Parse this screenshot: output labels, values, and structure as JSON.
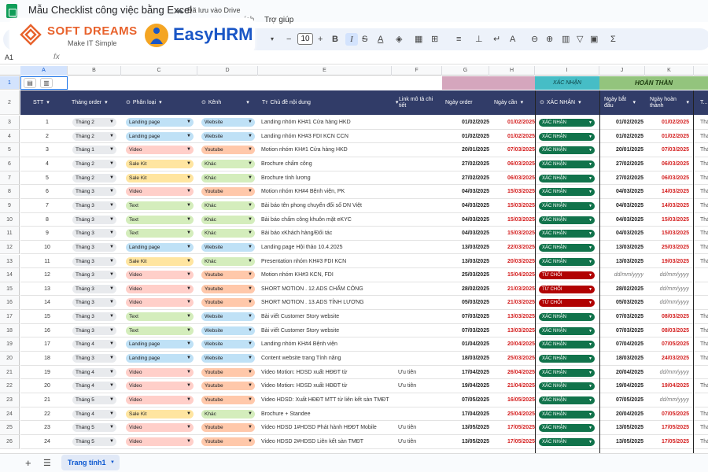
{
  "window": {
    "doc_title": "Mẫu Checklist công việc bằng Excel",
    "save_status": "Đã lưu vào Drive",
    "menus": [
      "ích",
      "Trợ giúp"
    ]
  },
  "logos": {
    "softdreams_name": "SOFT DREAMS",
    "softdreams_tagline": "Make IT Simple",
    "easyhrm_name": "EasyHRM"
  },
  "toolbar": {
    "font_size": "10",
    "icons": [
      "minus-icon",
      "font-size",
      "plus-icon",
      "bold-icon",
      "italic-icon",
      "strikethrough-icon",
      "text-color-icon",
      "fill-color-icon",
      "borders-icon",
      "merge-icon",
      "align-icon",
      "valign-icon",
      "wrap-icon",
      "rotate-icon",
      "link-icon",
      "comment-icon",
      "chart-icon",
      "filter-icon",
      "table-view-icon",
      "functions-icon"
    ]
  },
  "formula_bar": {
    "cell_ref": "A1",
    "fx": "fx"
  },
  "columns": [
    "A",
    "B",
    "C",
    "D",
    "E",
    "F",
    "G",
    "H",
    "I",
    "J",
    "K"
  ],
  "row1": {
    "teal_label": "XÁC NHẬN",
    "green_label": "HOÀN THÀN"
  },
  "headers": {
    "stt": "STT",
    "thang_order": "Tháng order",
    "phan_loai": "Phân loại",
    "kenh": "Kênh",
    "chu_de": "Chủ đề nội dung",
    "link": "Link mô tả chi tiết",
    "ngay_order": "Ngày order",
    "ngay_can": "Ngày cần",
    "xac_nhan": "XÁC NHẬN",
    "ngay_bat_dau": "Ngày bắt đầu",
    "ngay_hoan_thanh": "Ngày hoàn thành",
    "extra": "T..."
  },
  "colors": {
    "header_bg": "#313c68",
    "chip_landing": "#bfe1f6",
    "chip_video": "#ffcfc9",
    "chip_salekit": "#ffe5a0",
    "chip_text": "#d4edbc",
    "chip_website": "#bfe1f6",
    "chip_youtube": "#ffc8aa",
    "chip_khac": "#d4edbc",
    "status_confirm": "#11734b",
    "status_reject": "#b10202"
  },
  "rows": [
    {
      "row": "3",
      "stt": "1",
      "thang": "Tháng 2",
      "loai": "Landing page",
      "kenh": "Website",
      "chu_de": "Landing nhóm KH#1 Cửa hàng HKD",
      "link": "",
      "order": "01/02/2025",
      "can": "01/02/2025",
      "status": "XÁC NHẬN",
      "bat_dau": "01/02/2025",
      "hoan_thanh": "01/02/2025",
      "extra": "Thá"
    },
    {
      "row": "4",
      "stt": "2",
      "thang": "Tháng 2",
      "loai": "Landing page",
      "kenh": "Website",
      "chu_de": "Landing nhóm KH#3 FDI KCN CCN",
      "link": "",
      "order": "01/02/2025",
      "can": "01/02/2025",
      "status": "XÁC NHẬN",
      "bat_dau": "01/02/2025",
      "hoan_thanh": "01/02/2025",
      "extra": "Thá"
    },
    {
      "row": "5",
      "stt": "3",
      "thang": "Tháng 1",
      "loai": "Video",
      "kenh": "Youtube",
      "chu_de": "Motion nhóm KH#1 Cửa hàng HKD",
      "link": "",
      "order": "20/01/2025",
      "can": "07/03/2025",
      "status": "XÁC NHẬN",
      "bat_dau": "20/01/2025",
      "hoan_thanh": "07/03/2025",
      "extra": "Thá"
    },
    {
      "row": "6",
      "stt": "4",
      "thang": "Tháng 2",
      "loai": "Sale Kit",
      "kenh": "Khác",
      "chu_de": "Brochure  chấm công",
      "link": "",
      "order": "27/02/2025",
      "can": "06/03/2025",
      "status": "XÁC NHẬN",
      "bat_dau": "27/02/2025",
      "hoan_thanh": "06/03/2025",
      "extra": "Thá"
    },
    {
      "row": "7",
      "stt": "5",
      "thang": "Tháng 2",
      "loai": "Sale Kit",
      "kenh": "Khác",
      "chu_de": "Brochure  tính lương",
      "link": "",
      "order": "27/02/2025",
      "can": "06/03/2025",
      "status": "XÁC NHẬN",
      "bat_dau": "27/02/2025",
      "hoan_thanh": "06/03/2025",
      "extra": "Thá"
    },
    {
      "row": "8",
      "stt": "6",
      "thang": "Tháng 3",
      "loai": "Video",
      "kenh": "Youtube",
      "chu_de": "Motion nhóm KH#4 Bệnh viện, PK",
      "link": "",
      "order": "04/03/2025",
      "can": "15/03/2025",
      "status": "XÁC NHẬN",
      "bat_dau": "04/03/2025",
      "hoan_thanh": "14/03/2025",
      "extra": "Thá"
    },
    {
      "row": "9",
      "stt": "7",
      "thang": "Tháng 3",
      "loai": "Text",
      "kenh": "Khác",
      "chu_de": "Bài báo  tên phong chuyển đổi số DN Việt",
      "link": "",
      "order": "04/03/2025",
      "can": "15/03/2025",
      "status": "XÁC NHẬN",
      "bat_dau": "04/03/2025",
      "hoan_thanh": "14/03/2025",
      "extra": "Thá"
    },
    {
      "row": "10",
      "stt": "8",
      "thang": "Tháng 3",
      "loai": "Text",
      "kenh": "Khác",
      "chu_de": "Bài báo  chấm công khuôn mặt eKYC",
      "link": "",
      "order": "04/03/2025",
      "can": "15/03/2025",
      "status": "XÁC NHẬN",
      "bat_dau": "04/03/2025",
      "hoan_thanh": "15/03/2025",
      "extra": "Thá"
    },
    {
      "row": "11",
      "stt": "9",
      "thang": "Tháng 3",
      "loai": "Text",
      "kenh": "Khác",
      "chu_de": "Bài báo  xKhách hàng/Đối tác",
      "link": "",
      "order": "04/03/2025",
      "can": "15/03/2025",
      "status": "XÁC NHẬN",
      "bat_dau": "04/03/2025",
      "hoan_thanh": "15/03/2025",
      "extra": "Thá"
    },
    {
      "row": "12",
      "stt": "10",
      "thang": "Tháng 3",
      "loai": "Landing page",
      "kenh": "Website",
      "chu_de": "Landing page Hội thảo 10.4.2025",
      "link": "",
      "order": "13/03/2025",
      "can": "22/03/2025",
      "status": "XÁC NHẬN",
      "bat_dau": "13/03/2025",
      "hoan_thanh": "25/03/2025",
      "extra": "Thá"
    },
    {
      "row": "13",
      "stt": "11",
      "thang": "Tháng 3",
      "loai": "Sale Kit",
      "kenh": "Khác",
      "chu_de": " Presentation nhóm KH#3 FDI KCN",
      "link": "",
      "order": "13/03/2025",
      "can": "20/03/2025",
      "status": "XÁC NHẬN",
      "bat_dau": "13/03/2025",
      "hoan_thanh": "19/03/2025",
      "extra": "Thá"
    },
    {
      "row": "14",
      "stt": "12",
      "thang": "Tháng 3",
      "loai": "Video",
      "kenh": "Youtube",
      "chu_de": "Motion nhóm KH#3 KCN, FDI",
      "link": "",
      "order": "25/03/2025",
      "can": "15/04/2025",
      "status": "TỪ CHỐI",
      "bat_dau": "dd/mm/yyyy",
      "hoan_thanh": "dd/mm/yyyy",
      "extra": ""
    },
    {
      "row": "15",
      "stt": "13",
      "thang": "Tháng 3",
      "loai": "Video",
      "kenh": "Youtube",
      "chu_de": "SHORT MOTION . 12.ADS CHẤM CÔNG",
      "link": "",
      "order": "28/02/2025",
      "can": "21/03/2025",
      "status": "TỪ CHỐI",
      "bat_dau": "28/02/2025",
      "hoan_thanh": "dd/mm/yyyy",
      "extra": ""
    },
    {
      "row": "16",
      "stt": "14",
      "thang": "Tháng 3",
      "loai": "Video",
      "kenh": "Youtube",
      "chu_de": "SHORT MOTION . 13.ADS TÍNH LƯƠNG",
      "link": "",
      "order": "05/03/2025",
      "can": "21/03/2025",
      "status": "TỪ CHỐI",
      "bat_dau": "05/03/2025",
      "hoan_thanh": "dd/mm/yyyy",
      "extra": ""
    },
    {
      "row": "17",
      "stt": "15",
      "thang": "Tháng 3",
      "loai": "Text",
      "kenh": "Website",
      "chu_de": "Bài viết Customer Story website",
      "link": "",
      "order": "07/03/2025",
      "can": "13/03/2025",
      "status": "XÁC NHẬN",
      "bat_dau": "07/03/2025",
      "hoan_thanh": "08/03/2025",
      "extra": "Thá"
    },
    {
      "row": "18",
      "stt": "16",
      "thang": "Tháng 3",
      "loai": "Text",
      "kenh": "Website",
      "chu_de": "Bài viết Customer Story website",
      "link": "",
      "order": "07/03/2025",
      "can": "13/03/2025",
      "status": "XÁC NHẬN",
      "bat_dau": "07/03/2025",
      "hoan_thanh": "08/03/2025",
      "extra": "Thá"
    },
    {
      "row": "19",
      "stt": "17",
      "thang": "Tháng 4",
      "loai": "Landing page",
      "kenh": "Website",
      "chu_de": "Landing nhóm KH#4 Bệnh viện",
      "link": "",
      "order": "01/04/2025",
      "can": "20/04/2025",
      "status": "XÁC NHẬN",
      "bat_dau": "07/04/2025",
      "hoan_thanh": "07/05/2025",
      "extra": "Thá"
    },
    {
      "row": "20",
      "stt": "18",
      "thang": "Tháng 3",
      "loai": "Landing page",
      "kenh": "Website",
      "chu_de": "Content website trang Tính năng",
      "link": "",
      "order": "18/03/2025",
      "can": "25/03/2025",
      "status": "XÁC NHẬN",
      "bat_dau": "18/03/2025",
      "hoan_thanh": "24/03/2025",
      "extra": "Thá"
    },
    {
      "row": "21",
      "stt": "19",
      "thang": "Tháng 4",
      "loai": "Video",
      "kenh": "Youtube",
      "chu_de": "Video Motion: HDSD xuất HĐĐT từ",
      "link": "Ưu tiên",
      "order": "17/04/2025",
      "can": "26/04/2025",
      "status": "XÁC NHẬN",
      "bat_dau": "20/04/2025",
      "hoan_thanh": "dd/mm/yyyy",
      "extra": ""
    },
    {
      "row": "22",
      "stt": "20",
      "thang": "Tháng 4",
      "loai": "Video",
      "kenh": "Youtube",
      "chu_de": "Video Motion: HDSD xuất HĐĐT từ",
      "link": "Ưu tiên",
      "order": "19/04/2025",
      "can": "21/04/2025",
      "status": "XÁC NHẬN",
      "bat_dau": "19/04/2025",
      "hoan_thanh": "19/04/2025",
      "extra": "Thá"
    },
    {
      "row": "23",
      "stt": "21",
      "thang": "Tháng 5",
      "loai": "Video",
      "kenh": "Youtube",
      "chu_de": "Video HDSD: Xuất HĐĐT MTT từ liên kết sàn TMĐT",
      "link": "",
      "order": "07/05/2025",
      "can": "16/05/2025",
      "status": "XÁC NHẬN",
      "bat_dau": "07/05/2025",
      "hoan_thanh": "dd/mm/yyyy",
      "extra": ""
    },
    {
      "row": "24",
      "stt": "22",
      "thang": "Tháng 4",
      "loai": "Sale Kit",
      "kenh": "Khác",
      "chu_de": "Brochure + Standee",
      "link": "",
      "order": "17/04/2025",
      "can": "25/04/2025",
      "status": "XÁC NHẬN",
      "bat_dau": "20/04/2025",
      "hoan_thanh": "07/05/2025",
      "extra": "Thá"
    },
    {
      "row": "25",
      "stt": "23",
      "thang": "Tháng 5",
      "loai": "Video",
      "kenh": "Youtube",
      "chu_de": "Video HDSD  1#HDSD Phát hành HĐĐT Mobile",
      "link": "Ưu tiên",
      "order": "13/05/2025",
      "can": "17/05/2025",
      "status": "XÁC NHẬN",
      "bat_dau": "13/05/2025",
      "hoan_thanh": "17/05/2025",
      "extra": "Thá"
    },
    {
      "row": "26",
      "stt": "24",
      "thang": "Tháng 5",
      "loai": "Video",
      "kenh": "Youtube",
      "chu_de": "Video HDSD  2#HDSD Liên kết sàn TMĐT",
      "link": "Ưu tiên",
      "order": "13/05/2025",
      "can": "17/05/2025",
      "status": "XÁC NHẬN",
      "bat_dau": "13/05/2025",
      "hoan_thanh": "17/05/2025",
      "extra": "Thá"
    }
  ],
  "bottom": {
    "sheet_name": "Trang tính1"
  }
}
